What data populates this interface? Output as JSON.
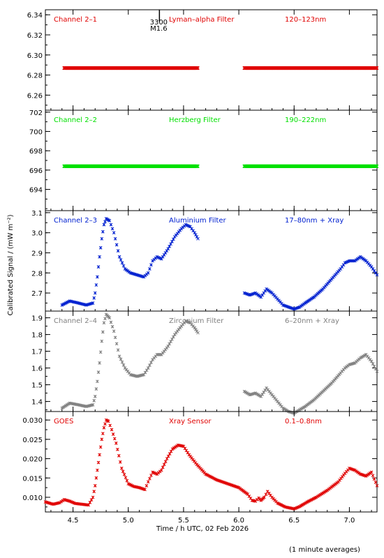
{
  "chart_data": {
    "type": "scatter",
    "x_range": [
      4.25,
      7.25
    ],
    "x_ticks": [
      4.5,
      5.0,
      5.5,
      6.0,
      6.5,
      7.0
    ],
    "x_tick_labels": [
      "4.5",
      "5.0",
      "5.5",
      "6.0",
      "6.5",
      "7.0"
    ],
    "xlabel": "Time / h UTC, 02 Feb 2026",
    "ylabel": "Calibrated Signal / (mW m⁻²)",
    "footnote": "(1 minute averages)",
    "flare_marker": {
      "x": 5.25,
      "label_top": "3300",
      "label_bottom": "M1.6"
    },
    "panels": [
      {
        "id": "ch21",
        "channel": "Channel 2–1",
        "filter": "Lyman–alpha Filter",
        "band": "120–123nm",
        "color": "#e00000",
        "ylim": [
          6.245,
          6.345
        ],
        "yticks": [
          6.26,
          6.28,
          6.3,
          6.32,
          6.34
        ],
        "ytick_labels": [
          "6.26",
          "6.28",
          "6.30",
          "6.32",
          "6.34"
        ],
        "segments": [
          {
            "x": [
              4.42,
              5.63
            ],
            "y": [
              6.287,
              6.287
            ]
          },
          {
            "x": [
              6.05,
              7.25
            ],
            "y": [
              6.287,
              6.287
            ]
          }
        ]
      },
      {
        "id": "ch22",
        "channel": "Channel 2–2",
        "filter": "Herzberg Filter",
        "band": "190–222nm",
        "color": "#00e000",
        "ylim": [
          691.8,
          702.2
        ],
        "yticks": [
          694,
          696,
          698,
          700,
          702
        ],
        "ytick_labels": [
          "694",
          "696",
          "698",
          "700",
          "702"
        ],
        "segments": [
          {
            "x": [
              4.42,
              5.63
            ],
            "y": [
              696.4,
              696.4
            ]
          },
          {
            "x": [
              6.05,
              7.25
            ],
            "y": [
              696.4,
              696.4
            ]
          }
        ]
      },
      {
        "id": "ch23",
        "channel": "Channel 2–3",
        "filter": "Aluminium Filter",
        "band": "17–80nm + Xray",
        "color": "#0020d0",
        "ylim": [
          2.61,
          3.11
        ],
        "yticks": [
          2.7,
          2.8,
          2.9,
          3.0,
          3.1
        ],
        "ytick_labels": [
          "2.7",
          "2.8",
          "2.9",
          "3.0",
          "3.1"
        ],
        "segments": [
          {
            "x": [
              4.4,
              4.47,
              4.55,
              4.62,
              4.68,
              4.7,
              4.72,
              4.74,
              4.76,
              4.78,
              4.8,
              4.83,
              4.87,
              4.92,
              4.97,
              5.02,
              5.08,
              5.14,
              5.18,
              5.22,
              5.26,
              5.3,
              5.36,
              5.42,
              5.48,
              5.52,
              5.56,
              5.6,
              5.63
            ],
            "y": [
              2.64,
              2.66,
              2.65,
              2.64,
              2.65,
              2.7,
              2.78,
              2.88,
              2.97,
              3.04,
              3.07,
              3.06,
              3.0,
              2.88,
              2.82,
              2.8,
              2.79,
              2.78,
              2.8,
              2.86,
              2.88,
              2.87,
              2.92,
              2.98,
              3.02,
              3.04,
              3.03,
              3.0,
              2.97
            ]
          },
          {
            "x": [
              6.05,
              6.1,
              6.15,
              6.2,
              6.25,
              6.3,
              6.35,
              6.4,
              6.45,
              6.5,
              6.55,
              6.6,
              6.68,
              6.76,
              6.84,
              6.92,
              6.96,
              7.0,
              7.05,
              7.1,
              7.15,
              7.2,
              7.25
            ],
            "y": [
              2.7,
              2.69,
              2.7,
              2.68,
              2.72,
              2.7,
              2.67,
              2.64,
              2.63,
              2.62,
              2.63,
              2.65,
              2.68,
              2.72,
              2.77,
              2.82,
              2.85,
              2.86,
              2.86,
              2.88,
              2.86,
              2.83,
              2.79
            ]
          }
        ]
      },
      {
        "id": "ch24",
        "channel": "Channel 2–4",
        "filter": "Zirconium Filter",
        "band": "6–20nm + Xray",
        "color": "#808080",
        "ylim": [
          1.34,
          1.94
        ],
        "yticks": [
          1.4,
          1.5,
          1.6,
          1.7,
          1.8,
          1.9
        ],
        "ytick_labels": [
          "1.4",
          "1.5",
          "1.6",
          "1.7",
          "1.8",
          "1.9"
        ],
        "segments": [
          {
            "x": [
              4.4,
              4.47,
              4.55,
              4.62,
              4.68,
              4.7,
              4.72,
              4.74,
              4.76,
              4.78,
              4.8,
              4.83,
              4.87,
              4.92,
              4.97,
              5.02,
              5.08,
              5.14,
              5.18,
              5.22,
              5.26,
              5.3,
              5.36,
              5.42,
              5.48,
              5.52,
              5.56,
              5.6,
              5.63
            ],
            "y": [
              1.36,
              1.39,
              1.38,
              1.37,
              1.38,
              1.43,
              1.52,
              1.63,
              1.76,
              1.87,
              1.92,
              1.9,
              1.82,
              1.67,
              1.6,
              1.56,
              1.55,
              1.56,
              1.6,
              1.65,
              1.68,
              1.68,
              1.73,
              1.8,
              1.85,
              1.88,
              1.87,
              1.84,
              1.81
            ]
          },
          {
            "x": [
              6.05,
              6.1,
              6.15,
              6.2,
              6.25,
              6.3,
              6.35,
              6.4,
              6.45,
              6.5,
              6.55,
              6.6,
              6.68,
              6.76,
              6.84,
              6.92,
              6.96,
              7.0,
              7.05,
              7.1,
              7.15,
              7.2,
              7.25
            ],
            "y": [
              1.46,
              1.44,
              1.45,
              1.43,
              1.48,
              1.44,
              1.4,
              1.36,
              1.34,
              1.33,
              1.35,
              1.37,
              1.41,
              1.46,
              1.51,
              1.57,
              1.6,
              1.62,
              1.63,
              1.66,
              1.68,
              1.64,
              1.58
            ]
          }
        ]
      },
      {
        "id": "goes",
        "channel": "GOES",
        "filter": "Xray Sensor",
        "band": "0.1–0.8nm",
        "color": "#e00000",
        "ylim": [
          0.0062,
          0.0322
        ],
        "yticks": [
          0.01,
          0.015,
          0.02,
          0.025,
          0.03
        ],
        "ytick_labels": [
          "0.010",
          "0.015",
          "0.020",
          "0.025",
          "0.030"
        ],
        "segments": [
          {
            "x": [
              4.25,
              4.32,
              4.38,
              4.42,
              4.47,
              4.52,
              4.58,
              4.64,
              4.68,
              4.7,
              4.72,
              4.74,
              4.76,
              4.78,
              4.8,
              4.82,
              4.85,
              4.89,
              4.94,
              5.0,
              5.05,
              5.1,
              5.15,
              5.18,
              5.22,
              5.26,
              5.3,
              5.35,
              5.4,
              5.45,
              5.5,
              5.55,
              5.62,
              5.7,
              5.8,
              5.9,
              6.0,
              6.08,
              6.12,
              6.15,
              6.18,
              6.2,
              6.23,
              6.26,
              6.3,
              6.35,
              6.42,
              6.5,
              6.55,
              6.62,
              6.7,
              6.8,
              6.9,
              6.96,
              7.0,
              7.05,
              7.1,
              7.15,
              7.2,
              7.25
            ],
            "y": [
              0.0088,
              0.0082,
              0.0086,
              0.0094,
              0.009,
              0.0084,
              0.0082,
              0.008,
              0.01,
              0.013,
              0.017,
              0.021,
              0.025,
              0.028,
              0.03,
              0.0297,
              0.0275,
              0.024,
              0.0175,
              0.0135,
              0.0128,
              0.0125,
              0.012,
              0.014,
              0.0165,
              0.016,
              0.017,
              0.02,
              0.0225,
              0.0235,
              0.0232,
              0.021,
              0.0185,
              0.016,
              0.0145,
              0.0135,
              0.0125,
              0.0108,
              0.0092,
              0.009,
              0.0098,
              0.0092,
              0.01,
              0.0115,
              0.01,
              0.0085,
              0.0075,
              0.007,
              0.0076,
              0.0088,
              0.01,
              0.0118,
              0.014,
              0.0162,
              0.0175,
              0.017,
              0.016,
              0.0155,
              0.0165,
              0.013
            ]
          }
        ]
      }
    ]
  }
}
